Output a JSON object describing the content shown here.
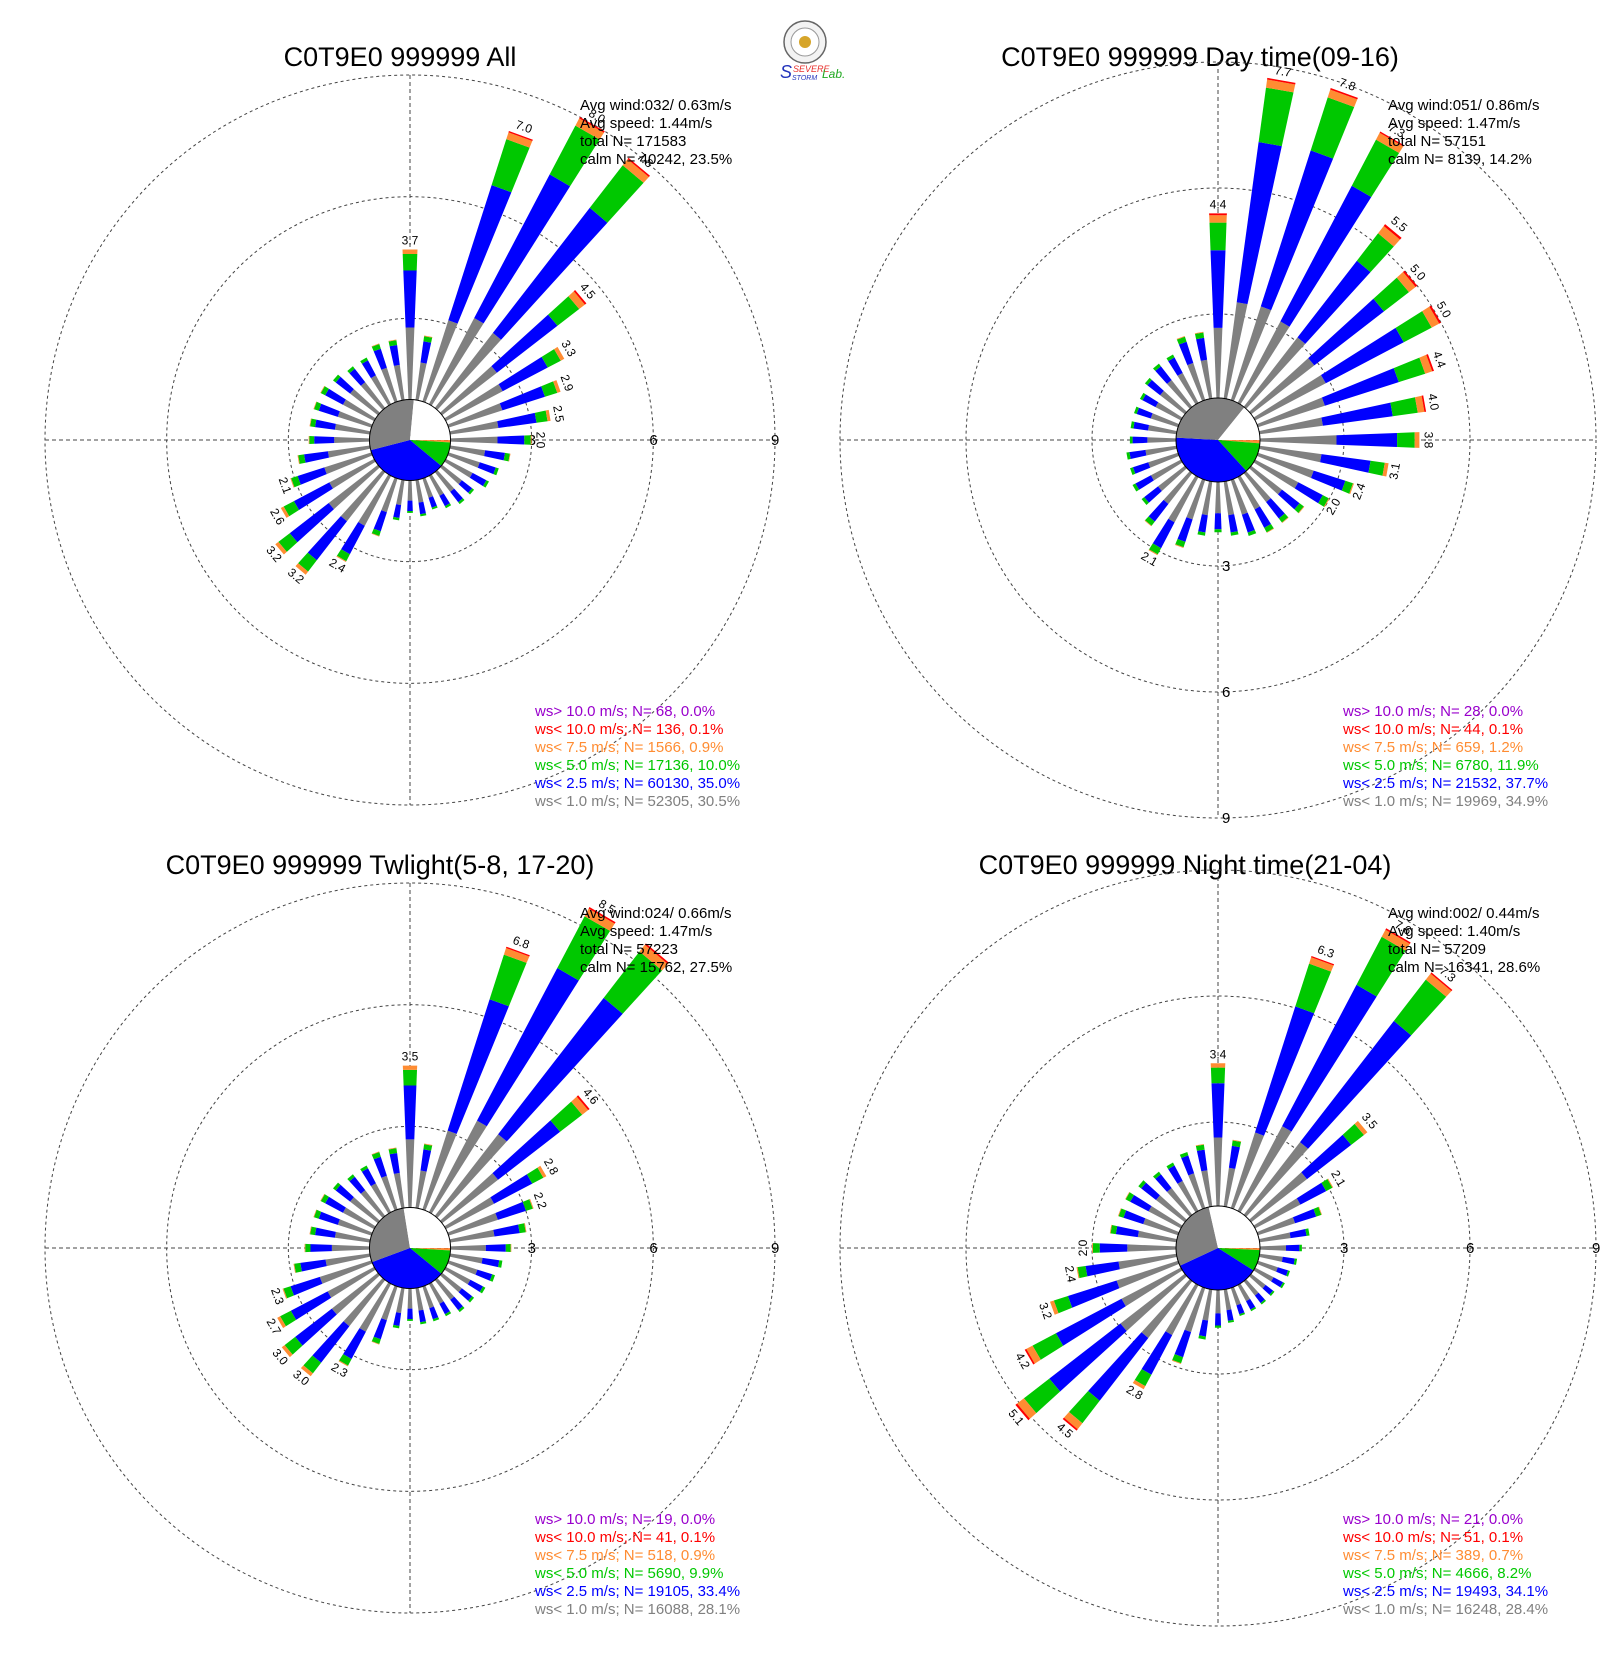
{
  "logo": {
    "text_severe": "SEVERE",
    "text_storm": "STORM",
    "text_lab": "Lab.",
    "colors": {
      "red": "#e8312e",
      "blue": "#2233bb",
      "green": "#1fa81f",
      "gold": "#d6a52a"
    }
  },
  "ring_labels": [
    "3",
    "6",
    "9"
  ],
  "colors": {
    "gt10": "#9900cc",
    "lt10": "#ff0000",
    "lt7_5": "#ff8c32",
    "lt5": "#00c800",
    "lt2_5": "#0000ff",
    "lt1": "#808080",
    "calm": "#ffffff"
  },
  "chart_data": [
    {
      "type": "windrose",
      "title": "C0T9E0 999999 All",
      "rmax": 9,
      "ticks": [
        3,
        6,
        9
      ],
      "stats": {
        "avg_wind": "Avg wind:032/ 0.63m/s",
        "avg_speed": "Avg speed: 1.44m/s",
        "total": "total N=      171583",
        "calm": "calm N=  40242,  23.5%"
      },
      "legend": [
        {
          "text": "ws> 10.0 m/s; N=    68,  0.0%",
          "color": "#9900cc"
        },
        {
          "text": "ws< 10.0 m/s; N=   136,  0.1%",
          "color": "#ff0000"
        },
        {
          "text": "ws<  7.5 m/s; N=  1566,  0.9%",
          "color": "#ff8c32"
        },
        {
          "text": "ws<  5.0 m/s; N= 17136, 10.0%",
          "color": "#00c800"
        },
        {
          "text": "ws<  2.5 m/s; N= 60130, 35.0%",
          "color": "#0000ff"
        },
        {
          "text": "ws<  1.0 m/s; N= 52305, 30.5%",
          "color": "#808080"
        }
      ],
      "pie": [
        23.5,
        30.5,
        35.0,
        10.0,
        0.9,
        0.1
      ],
      "bars": [
        {
          "dir": 0,
          "total": 3.7,
          "label": "3.7"
        },
        {
          "dir": 10,
          "total": 1.6
        },
        {
          "dir": 20,
          "total": 7.0,
          "label": "7.0"
        },
        {
          "dir": 30,
          "total": 8.0,
          "label": "8.0"
        },
        {
          "dir": 40,
          "total": 7.8,
          "label": "7.8"
        },
        {
          "dir": 50,
          "total": 4.5,
          "label": "4.5"
        },
        {
          "dir": 60,
          "total": 3.3,
          "label": "3.3"
        },
        {
          "dir": 70,
          "total": 2.9,
          "label": "2.9"
        },
        {
          "dir": 80,
          "total": 2.5,
          "label": "2.5"
        },
        {
          "dir": 90,
          "total": 2.0,
          "label": "2.0"
        },
        {
          "dir": 100,
          "total": 1.5
        },
        {
          "dir": 110,
          "total": 1.3
        },
        {
          "dir": 120,
          "total": 1.2
        },
        {
          "dir": 130,
          "total": 1.0
        },
        {
          "dir": 140,
          "total": 1.0
        },
        {
          "dir": 150,
          "total": 0.9
        },
        {
          "dir": 160,
          "total": 0.8
        },
        {
          "dir": 170,
          "total": 0.9
        },
        {
          "dir": 180,
          "total": 0.8
        },
        {
          "dir": 190,
          "total": 1.0
        },
        {
          "dir": 200,
          "total": 1.5
        },
        {
          "dir": 210,
          "total": 2.4,
          "label": "2.4"
        },
        {
          "dir": 220,
          "total": 3.2,
          "label": "3.2"
        },
        {
          "dir": 230,
          "total": 3.2,
          "label": "3.2"
        },
        {
          "dir": 240,
          "total": 2.6,
          "label": "2.6"
        },
        {
          "dir": 250,
          "total": 2.1,
          "label": "2.1"
        },
        {
          "dir": 260,
          "total": 1.8
        },
        {
          "dir": 270,
          "total": 1.5
        },
        {
          "dir": 280,
          "total": 1.5
        },
        {
          "dir": 290,
          "total": 1.5
        },
        {
          "dir": 300,
          "total": 1.5
        },
        {
          "dir": 310,
          "total": 1.4
        },
        {
          "dir": 320,
          "total": 1.3
        },
        {
          "dir": 330,
          "total": 1.3
        },
        {
          "dir": 340,
          "total": 1.5
        },
        {
          "dir": 350,
          "total": 1.5
        }
      ]
    },
    {
      "type": "windrose",
      "title": "C0T9E0 999999 Day time(09-16)",
      "rmax": 9,
      "ticks": [
        3,
        6,
        9
      ],
      "stats": {
        "avg_wind": "Avg wind:051/ 0.86m/s",
        "avg_speed": "Avg speed: 1.47m/s",
        "total": "total N=      57151",
        "calm": "calm N=   8139,  14.2%"
      },
      "legend": [
        {
          "text": "ws> 10.0 m/s; N=    28,  0.0%",
          "color": "#9900cc"
        },
        {
          "text": "ws< 10.0 m/s; N=    44,  0.1%",
          "color": "#ff0000"
        },
        {
          "text": "ws<  7.5 m/s; N=   659,  1.2%",
          "color": "#ff8c32"
        },
        {
          "text": "ws<  5.0 m/s; N=  6780, 11.9%",
          "color": "#00c800"
        },
        {
          "text": "ws<  2.5 m/s; N= 21532, 37.7%",
          "color": "#0000ff"
        },
        {
          "text": "ws<  1.0 m/s; N= 19969, 34.9%",
          "color": "#808080"
        }
      ],
      "pie": [
        14.2,
        34.9,
        37.7,
        11.9,
        1.2,
        0.1
      ],
      "bars": [
        {
          "dir": 0,
          "total": 4.4,
          "label": "4.4"
        },
        {
          "dir": 10,
          "total": 7.7,
          "label": "7.7"
        },
        {
          "dir": 20,
          "total": 7.8,
          "label": "7.8"
        },
        {
          "dir": 30,
          "total": 7.3,
          "label": "7.3"
        },
        {
          "dir": 40,
          "total": 5.5,
          "label": "5.5"
        },
        {
          "dir": 50,
          "total": 5.0,
          "label": "5.0"
        },
        {
          "dir": 60,
          "total": 5.0,
          "label": "5.0"
        },
        {
          "dir": 70,
          "total": 4.4,
          "label": "4.4"
        },
        {
          "dir": 80,
          "total": 4.0,
          "label": "4.0"
        },
        {
          "dir": 90,
          "total": 3.8,
          "label": "3.8"
        },
        {
          "dir": 100,
          "total": 3.1,
          "label": "3.1"
        },
        {
          "dir": 110,
          "total": 2.4,
          "label": "2.4"
        },
        {
          "dir": 120,
          "total": 2.0,
          "label": "2.0"
        },
        {
          "dir": 130,
          "total": 1.6
        },
        {
          "dir": 140,
          "total": 1.5
        },
        {
          "dir": 150,
          "total": 1.5
        },
        {
          "dir": 160,
          "total": 1.4
        },
        {
          "dir": 170,
          "total": 1.3
        },
        {
          "dir": 180,
          "total": 1.2
        },
        {
          "dir": 190,
          "total": 1.3
        },
        {
          "dir": 200,
          "total": 1.7
        },
        {
          "dir": 210,
          "total": 2.1,
          "label": "2.1"
        },
        {
          "dir": 220,
          "total": 1.6
        },
        {
          "dir": 230,
          "total": 1.3
        },
        {
          "dir": 240,
          "total": 1.3
        },
        {
          "dir": 250,
          "total": 1.2
        },
        {
          "dir": 260,
          "total": 1.2
        },
        {
          "dir": 270,
          "total": 1.1
        },
        {
          "dir": 280,
          "total": 1.1
        },
        {
          "dir": 290,
          "total": 1.1
        },
        {
          "dir": 300,
          "total": 1.1
        },
        {
          "dir": 310,
          "total": 1.2
        },
        {
          "dir": 320,
          "total": 1.3
        },
        {
          "dir": 330,
          "total": 1.3
        },
        {
          "dir": 340,
          "total": 1.6
        },
        {
          "dir": 350,
          "total": 1.6
        }
      ]
    },
    {
      "type": "windrose",
      "title": "C0T9E0 999999 Twlight(5-8, 17-20)",
      "rmax": 9,
      "ticks": [
        3,
        6,
        9
      ],
      "stats": {
        "avg_wind": "Avg wind:024/ 0.66m/s",
        "avg_speed": "Avg speed: 1.47m/s",
        "total": "total N=      57223",
        "calm": "calm N=  15762,  27.5%"
      },
      "legend": [
        {
          "text": "ws> 10.0 m/s; N=    19,  0.0%",
          "color": "#9900cc"
        },
        {
          "text": "ws< 10.0 m/s; N=    41,  0.1%",
          "color": "#ff0000"
        },
        {
          "text": "ws<  7.5 m/s; N=   518,  0.9%",
          "color": "#ff8c32"
        },
        {
          "text": "ws<  5.0 m/s; N=  5690,  9.9%",
          "color": "#00c800"
        },
        {
          "text": "ws<  2.5 m/s; N= 19105, 33.4%",
          "color": "#0000ff"
        },
        {
          "text": "ws<  1.0 m/s; N= 16088, 28.1%",
          "color": "#808080"
        }
      ],
      "pie": [
        27.5,
        28.1,
        33.4,
        9.9,
        0.9,
        0.1
      ],
      "bars": [
        {
          "dir": 0,
          "total": 3.5,
          "label": "3.5"
        },
        {
          "dir": 10,
          "total": 1.6
        },
        {
          "dir": 20,
          "total": 6.8,
          "label": "6.8"
        },
        {
          "dir": 30,
          "total": 8.5,
          "label": "8.5"
        },
        {
          "dir": 40,
          "total": 8.5
        },
        {
          "dir": 50,
          "total": 4.6,
          "label": "4.6"
        },
        {
          "dir": 60,
          "total": 2.8,
          "label": "2.8"
        },
        {
          "dir": 70,
          "total": 2.2,
          "label": "2.2"
        },
        {
          "dir": 80,
          "total": 1.9
        },
        {
          "dir": 90,
          "total": 1.5
        },
        {
          "dir": 100,
          "total": 1.3
        },
        {
          "dir": 110,
          "total": 1.2
        },
        {
          "dir": 120,
          "total": 1.1
        },
        {
          "dir": 130,
          "total": 1.0
        },
        {
          "dir": 140,
          "total": 1.0
        },
        {
          "dir": 150,
          "total": 0.9
        },
        {
          "dir": 160,
          "total": 0.9
        },
        {
          "dir": 170,
          "total": 0.9
        },
        {
          "dir": 180,
          "total": 0.8
        },
        {
          "dir": 190,
          "total": 1.0
        },
        {
          "dir": 200,
          "total": 1.5
        },
        {
          "dir": 210,
          "total": 2.3,
          "label": "2.3"
        },
        {
          "dir": 220,
          "total": 3.0,
          "label": "3.0"
        },
        {
          "dir": 230,
          "total": 3.0,
          "label": "3.0"
        },
        {
          "dir": 240,
          "total": 2.7,
          "label": "2.7"
        },
        {
          "dir": 250,
          "total": 2.3,
          "label": "2.3"
        },
        {
          "dir": 260,
          "total": 1.9
        },
        {
          "dir": 270,
          "total": 1.6
        },
        {
          "dir": 280,
          "total": 1.5
        },
        {
          "dir": 290,
          "total": 1.5
        },
        {
          "dir": 300,
          "total": 1.5
        },
        {
          "dir": 310,
          "total": 1.4
        },
        {
          "dir": 320,
          "total": 1.3
        },
        {
          "dir": 330,
          "total": 1.3
        },
        {
          "dir": 340,
          "total": 1.5
        },
        {
          "dir": 350,
          "total": 1.5
        }
      ]
    },
    {
      "type": "windrose",
      "title": "C0T9E0 999999 Night time(21-04)",
      "rmax": 9,
      "ticks": [
        3,
        6,
        9
      ],
      "stats": {
        "avg_wind": "Avg wind:002/ 0.44m/s",
        "avg_speed": "Avg speed: 1.40m/s",
        "total": "total N=      57209",
        "calm": "calm N=  16341,  28.6%"
      },
      "legend": [
        {
          "text": "ws> 10.0 m/s; N=    21,  0.0%",
          "color": "#9900cc"
        },
        {
          "text": "ws< 10.0 m/s; N=    51,  0.1%",
          "color": "#ff0000"
        },
        {
          "text": "ws<  7.5 m/s; N=   389,  0.7%",
          "color": "#ff8c32"
        },
        {
          "text": "ws<  5.0 m/s; N=  4666,  8.2%",
          "color": "#00c800"
        },
        {
          "text": "ws<  2.5 m/s; N= 19493, 34.1%",
          "color": "#0000ff"
        },
        {
          "text": "ws<  1.0 m/s; N= 16248, 28.4%",
          "color": "#808080"
        }
      ],
      "pie": [
        28.6,
        28.4,
        34.1,
        8.2,
        0.7,
        0.1
      ],
      "bars": [
        {
          "dir": 0,
          "total": 3.4,
          "label": "3.4"
        },
        {
          "dir": 10,
          "total": 1.6
        },
        {
          "dir": 20,
          "total": 6.3,
          "label": "6.3"
        },
        {
          "dir": 30,
          "total": 7.6,
          "label": "7.6"
        },
        {
          "dir": 40,
          "total": 7.3,
          "label": "7.3"
        },
        {
          "dir": 50,
          "total": 3.5,
          "label": "3.5"
        },
        {
          "dir": 60,
          "total": 2.1,
          "label": "2.1"
        },
        {
          "dir": 70,
          "total": 1.6
        },
        {
          "dir": 80,
          "total": 1.2
        },
        {
          "dir": 90,
          "total": 1.0
        },
        {
          "dir": 100,
          "total": 0.9
        },
        {
          "dir": 110,
          "total": 0.8
        },
        {
          "dir": 120,
          "total": 0.8
        },
        {
          "dir": 130,
          "total": 0.7
        },
        {
          "dir": 140,
          "total": 0.7
        },
        {
          "dir": 150,
          "total": 0.7
        },
        {
          "dir": 160,
          "total": 0.7
        },
        {
          "dir": 170,
          "total": 0.8
        },
        {
          "dir": 180,
          "total": 0.9
        },
        {
          "dir": 190,
          "total": 1.2
        },
        {
          "dir": 200,
          "total": 1.9
        },
        {
          "dir": 210,
          "total": 2.8,
          "label": "2.8"
        },
        {
          "dir": 220,
          "total": 4.5,
          "label": "4.5"
        },
        {
          "dir": 230,
          "total": 5.1,
          "label": "5.1"
        },
        {
          "dir": 240,
          "total": 4.2,
          "label": "4.2"
        },
        {
          "dir": 250,
          "total": 3.2,
          "label": "3.2"
        },
        {
          "dir": 260,
          "total": 2.4,
          "label": "2.4"
        },
        {
          "dir": 270,
          "total": 2.0,
          "label": "2.0"
        },
        {
          "dir": 280,
          "total": 1.6
        },
        {
          "dir": 290,
          "total": 1.5
        },
        {
          "dir": 300,
          "total": 1.5
        },
        {
          "dir": 310,
          "total": 1.4
        },
        {
          "dir": 320,
          "total": 1.3
        },
        {
          "dir": 330,
          "total": 1.3
        },
        {
          "dir": 340,
          "total": 1.4
        },
        {
          "dir": 350,
          "total": 1.5
        }
      ]
    }
  ]
}
